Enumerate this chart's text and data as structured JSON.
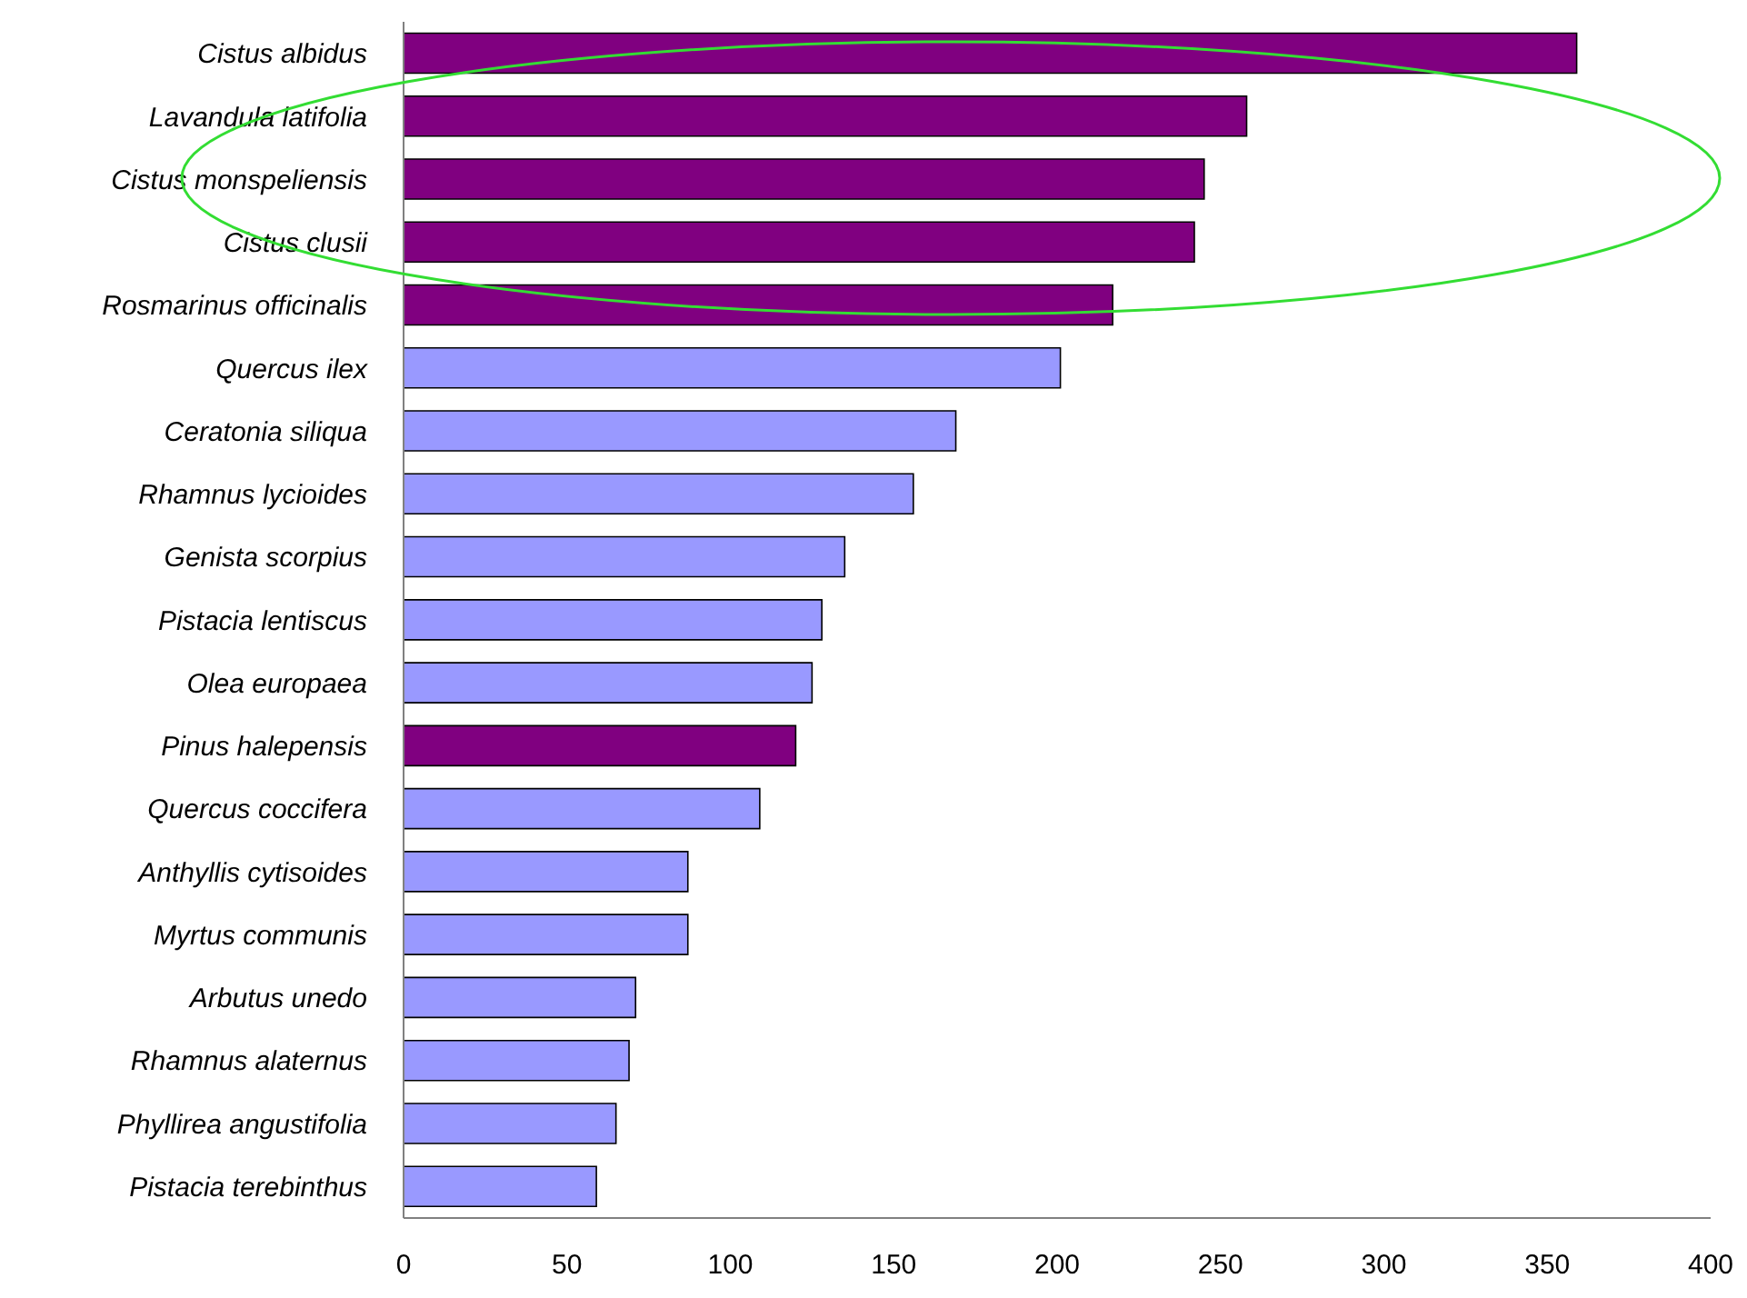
{
  "chart_data": {
    "type": "bar",
    "orientation": "horizontal",
    "categories": [
      "Cistus albidus",
      "Lavandula latifolia",
      "Cistus monspeliensis",
      "Cistus clusii",
      "Rosmarinus officinalis",
      "Quercus ilex",
      "Ceratonia siliqua",
      "Rhamnus lycioides",
      "Genista scorpius",
      "Pistacia lentiscus",
      "Olea europaea",
      "Pinus halepensis",
      "Quercus coccifera",
      "Anthyllis cytisoides",
      "Myrtus communis",
      "Arbutus unedo",
      "Rhamnus alaternus",
      "Phyllirea angustifolia",
      "Pistacia terebinthus"
    ],
    "values": [
      359,
      258,
      245,
      242,
      217,
      201,
      169,
      156,
      135,
      128,
      125,
      120,
      109,
      87,
      87,
      71,
      69,
      65,
      59
    ],
    "colors": [
      "#800080",
      "#800080",
      "#800080",
      "#800080",
      "#800080",
      "#9999ff",
      "#9999ff",
      "#9999ff",
      "#9999ff",
      "#9999ff",
      "#9999ff",
      "#800080",
      "#9999ff",
      "#9999ff",
      "#9999ff",
      "#9999ff",
      "#9999ff",
      "#9999ff",
      "#9999ff"
    ],
    "xlim": [
      0,
      400
    ],
    "xticks": [
      0,
      50,
      100,
      150,
      200,
      250,
      300,
      350,
      400
    ],
    "grid": false
  }
}
